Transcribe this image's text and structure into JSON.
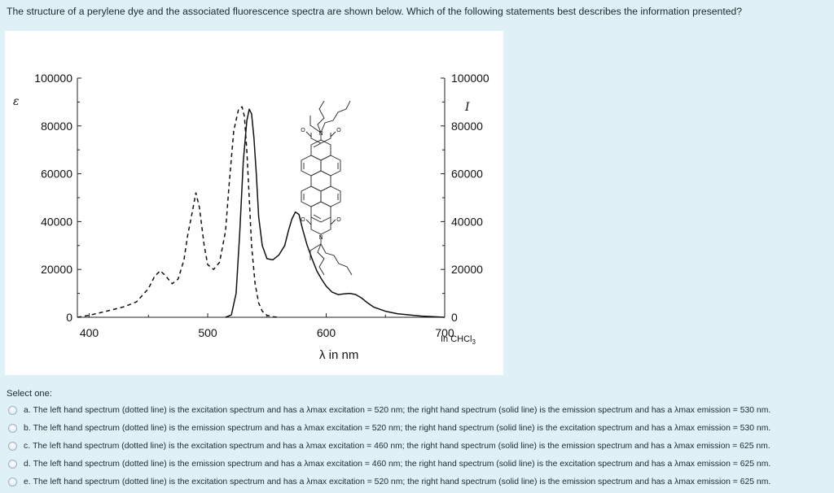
{
  "question": {
    "text": "The structure of a perylene dye and the associated fluorescence spectra are shown below. Which of the following statements best describes the information presented?"
  },
  "chart_data": {
    "type": "line",
    "title": "",
    "xlabel": "λ in nm",
    "ylabel_left": "ε",
    "ylabel_right": "I",
    "annotation": "In CHCl3",
    "xlim": [
      390,
      700
    ],
    "ylim": [
      0,
      100000
    ],
    "x_ticks": [
      "400",
      "500",
      "600",
      "700"
    ],
    "y_ticks_left": [
      "0",
      "20000",
      "40000",
      "60000",
      "80000",
      "100000"
    ],
    "y_ticks_right": [
      "0",
      "20000",
      "40000",
      "60000",
      "80000",
      "100000"
    ],
    "series": [
      {
        "style": "dotted",
        "x": [
          390,
          400,
          410,
          420,
          430,
          440,
          450,
          455,
          460,
          465,
          470,
          475,
          480,
          483,
          487,
          490,
          493,
          497,
          500,
          505,
          510,
          515,
          518,
          522,
          526,
          529,
          531,
          533,
          535,
          537,
          540,
          543,
          546,
          550,
          555,
          560
        ],
        "y": [
          0,
          800,
          2000,
          3200,
          4500,
          6500,
          12000,
          17000,
          19500,
          17000,
          14000,
          16000,
          24000,
          34000,
          44000,
          52000,
          46000,
          30000,
          22000,
          20000,
          23000,
          36000,
          55000,
          78000,
          87000,
          88000,
          84000,
          70000,
          50000,
          30000,
          14000,
          6000,
          2500,
          800,
          200,
          0
        ]
      },
      {
        "style": "solid",
        "x": [
          515,
          520,
          524,
          527,
          530,
          533,
          535,
          537,
          539,
          541,
          543,
          546,
          550,
          555,
          560,
          565,
          568,
          571,
          574,
          577,
          580,
          584,
          588,
          592,
          596,
          600,
          605,
          610,
          615,
          620,
          625,
          630,
          635,
          640,
          650,
          660,
          680,
          700
        ],
        "y": [
          0,
          1000,
          10000,
          35000,
          65000,
          82000,
          87000,
          85000,
          75000,
          60000,
          42000,
          30000,
          24500,
          24000,
          26000,
          30000,
          36000,
          41000,
          44000,
          43000,
          37000,
          30000,
          24500,
          19500,
          16000,
          13000,
          10500,
          9500,
          9800,
          10000,
          9500,
          8000,
          6000,
          4300,
          2500,
          1500,
          500,
          0
        ]
      }
    ]
  },
  "structure": {
    "atom_labels": [
      "O",
      "N",
      "O",
      "O",
      "N",
      "O"
    ]
  },
  "answers": {
    "select_label": "Select one:",
    "options": [
      {
        "letter": "a.",
        "text": "The left hand spectrum (dotted line) is the excitation spectrum and has a λmax excitation = 520 nm; the right hand spectrum (solid line) is the emission spectrum and has a λmax emission = 530 nm."
      },
      {
        "letter": "b.",
        "text": "The left hand spectrum (dotted line) is the emission spectrum and has a λmax excitation = 520 nm; the right hand spectrum (solid line) is the excitation spectrum and has a λmax emission = 530 nm."
      },
      {
        "letter": "c.",
        "text": "The left hand spectrum (dotted line) is the excitation spectrum and has a λmax excitation = 460 nm; the right hand spectrum (solid line) is the emission spectrum and has a λmax emission = 625 nm."
      },
      {
        "letter": "d.",
        "text": "The left hand spectrum (dotted line) is the emission spectrum and has a λmax excitation = 460 nm; the right hand spectrum (solid line) is the excitation spectrum and has a λmax emission = 625 nm."
      },
      {
        "letter": "e.",
        "text": "The left hand spectrum (dotted line) is the excitation spectrum and has a λmax excitation = 520 nm; the right hand spectrum (solid line) is the emission spectrum and has a λmax emission = 625 nm."
      }
    ]
  }
}
